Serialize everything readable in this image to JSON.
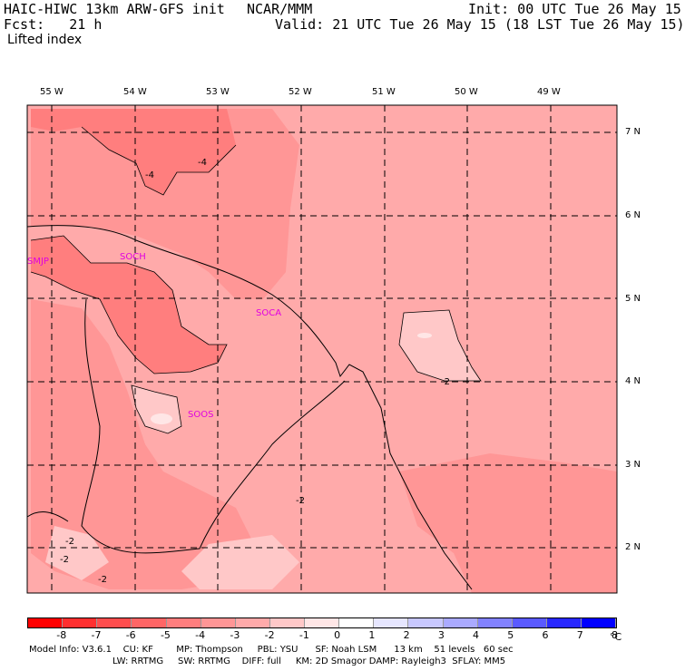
{
  "header": {
    "model": "HAIC-HIWC 13km ARW-GFS init",
    "org": "NCAR/MMM",
    "fcst": "Fcst:   21 h",
    "init": "Init: 00 UTC Tue 26 May 15",
    "valid": "Valid: 21 UTC Tue 26 May 15 (18 LST Tue 26 May 15)",
    "field": "Lifted index"
  },
  "map": {
    "lon_labels": [
      "55 W",
      "54 W",
      "53 W",
      "52 W",
      "51 W",
      "50 W",
      "49 W"
    ],
    "lat_labels": [
      "7 N",
      "6 N",
      "5 N",
      "4 N",
      "3 N",
      "2 N"
    ],
    "sites": [
      "SMJP",
      "SOCH",
      "SOCA",
      "SOOS"
    ],
    "contour_labels": [
      "-4",
      "-4",
      "-2",
      "-2",
      "-2",
      "-2",
      "-2"
    ]
  },
  "colorbar": {
    "ticks": [
      "-8",
      "-7",
      "-6",
      "-5",
      "-4",
      "-3",
      "-2",
      "-1",
      "0",
      "1",
      "2",
      "3",
      "4",
      "5",
      "6",
      "7",
      "8"
    ],
    "unit": "°C",
    "colors": [
      "#ff0000",
      "#ff3030",
      "#ff4e4e",
      "#ff6666",
      "#ff7e7e",
      "#ff9696",
      "#ffaaaa",
      "#ffc8c8",
      "#ffe6e6",
      "#ffffff",
      "#e6e6ff",
      "#c8c8ff",
      "#aaaaff",
      "#8282ff",
      "#5a5aff",
      "#2828ff",
      "#0000ff"
    ]
  },
  "footer": {
    "line1": "Model Info: V3.6.1    CU: KF        MP: Thompson     PBL: YSU      SF: Noah LSM      13 km    51 levels   60 sec",
    "line2": "LW: RRTMG     SW: RRTMG    DIFF: full     KM: 2D Smagor DAMP: Rayleigh3  SFLAY: MM5"
  }
}
